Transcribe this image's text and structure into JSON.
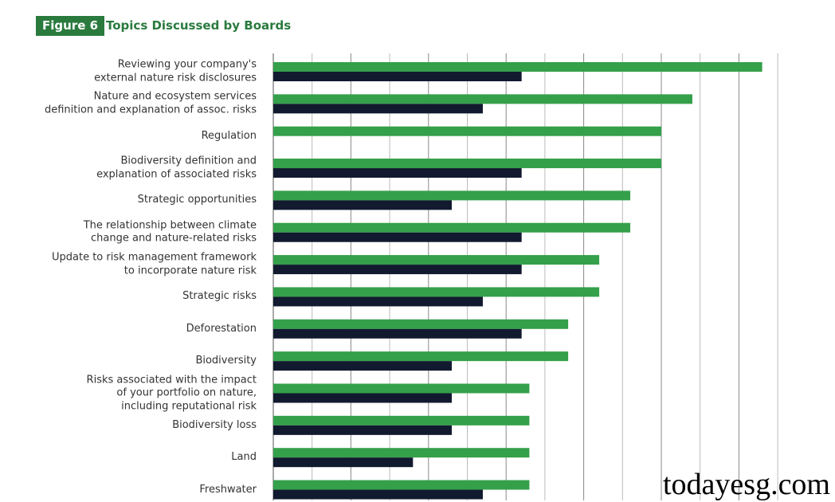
{
  "header": {
    "figure_label": "Figure 6",
    "title": "Topics Discussed by Boards"
  },
  "watermark": "todayesg.com",
  "colors": {
    "series_a": "#34a04a",
    "series_b": "#111a2e",
    "accent": "#2a7a3e",
    "grid": "#b0b0b0"
  },
  "chart_data": {
    "type": "bar",
    "orientation": "horizontal",
    "title": "Topics Discussed by Boards",
    "categories": [
      "Reviewing your company's\nexternal nature risk disclosures",
      "Nature and ecosystem services\ndefinition and explanation of assoc. risks",
      "Regulation",
      "Biodiversity definition and\nexplanation of associated risks",
      "Strategic opportunities",
      "The relationship between climate\nchange and nature-related risks",
      "Update to risk management framework\nto incorporate nature risk",
      "Strategic risks",
      "Deforestation",
      "Biodiversity",
      "Risks associated with the impact\nof your portfolio on nature,\nincluding reputational risk",
      "Biodiversity loss",
      "Land",
      "Freshwater"
    ],
    "series": [
      {
        "color": "#34a04a",
        "values": [
          12.6,
          10.8,
          10.0,
          10.0,
          9.2,
          9.2,
          8.4,
          8.4,
          7.6,
          7.6,
          6.6,
          6.6,
          6.6,
          6.6
        ]
      },
      {
        "color": "#111a2e",
        "values": [
          6.4,
          5.4,
          0,
          6.4,
          4.6,
          6.4,
          6.4,
          5.4,
          6.4,
          4.6,
          4.6,
          4.6,
          3.6,
          5.4
        ]
      }
    ],
    "xlim": [
      0,
      13
    ],
    "grid": true,
    "axis_tick_labels_shown": false
  }
}
